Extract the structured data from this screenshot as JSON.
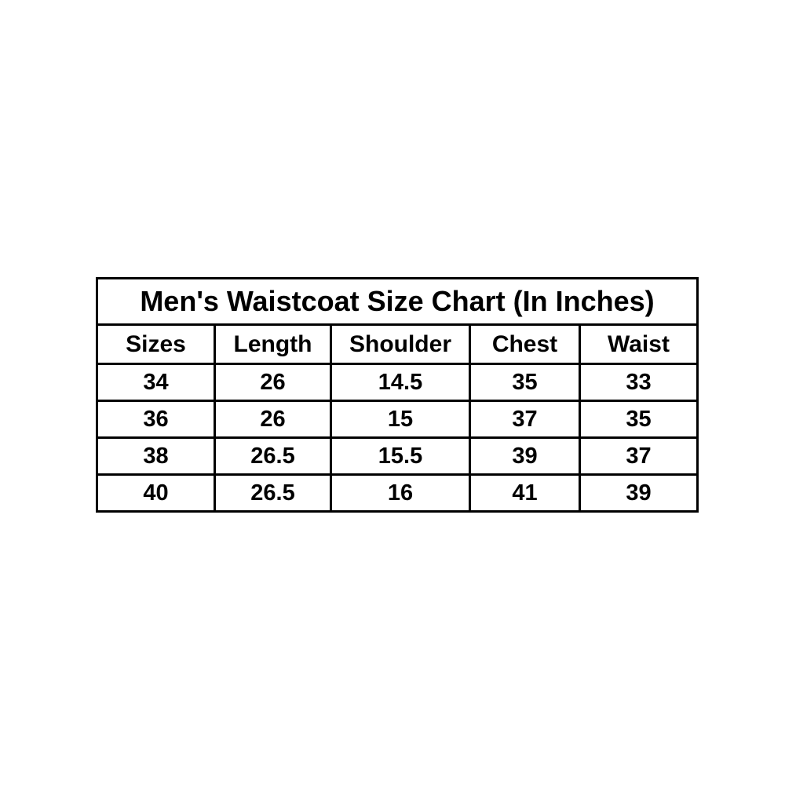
{
  "page": {
    "background": "#ffffff",
    "border_color": "#000000",
    "text_color": "#000000"
  },
  "chart_data": {
    "type": "table",
    "title": "Men's Waistcoat Size Chart (In Inches)",
    "columns": [
      "Sizes",
      "Length",
      "Shoulder",
      "Chest",
      "Waist"
    ],
    "rows": [
      [
        "34",
        "26",
        "14.5",
        "35",
        "33"
      ],
      [
        "36",
        "26",
        "15",
        "37",
        "35"
      ],
      [
        "38",
        "26.5",
        "15.5",
        "39",
        "37"
      ],
      [
        "40",
        "26.5",
        "16",
        "41",
        "39"
      ]
    ],
    "units": "inches",
    "layout": {
      "grid": "on",
      "border_color": "#000000",
      "background": "#ffffff"
    }
  }
}
